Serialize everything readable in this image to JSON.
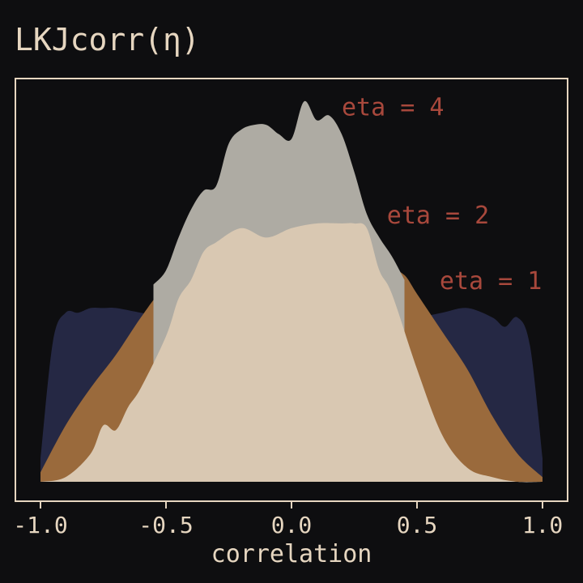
{
  "chart_data": {
    "type": "area",
    "title": "LKJcorr(η)",
    "subtitle": "",
    "xlabel": "correlation",
    "ylabel": "",
    "xlim": [
      -1.05,
      1.05
    ],
    "ylim": [
      0,
      0.85
    ],
    "xticks": [
      -1.0,
      -0.5,
      0.0,
      0.5,
      1.0
    ],
    "xtick_labels": [
      "-1.0",
      "-0.5",
      "0.0",
      "0.5",
      "1.0"
    ],
    "grid": false,
    "legend": "none",
    "series": [
      {
        "name": "eta = 1",
        "color": "#252844",
        "x": [
          -1.0,
          -0.95,
          -0.9,
          -0.85,
          -0.8,
          -0.75,
          -0.7,
          -0.6,
          -0.5,
          -0.4,
          -0.3,
          -0.2,
          -0.1,
          0.0,
          0.1,
          0.2,
          0.3,
          0.4,
          0.5,
          0.6,
          0.7,
          0.8,
          0.85,
          0.9,
          0.95,
          1.0
        ],
        "y": [
          0.05,
          0.3,
          0.36,
          0.36,
          0.37,
          0.37,
          0.37,
          0.36,
          0.35,
          0.36,
          0.36,
          0.35,
          0.36,
          0.35,
          0.34,
          0.35,
          0.36,
          0.35,
          0.35,
          0.36,
          0.37,
          0.35,
          0.33,
          0.35,
          0.29,
          0.05
        ]
      },
      {
        "name": "eta = 2",
        "color": "#9a6a3c",
        "x": [
          -1.0,
          -0.9,
          -0.8,
          -0.7,
          -0.6,
          -0.5,
          -0.45,
          -0.4,
          -0.3,
          -0.2,
          -0.1,
          0.0,
          0.1,
          0.2,
          0.3,
          0.4,
          0.45,
          0.5,
          0.6,
          0.7,
          0.8,
          0.9,
          1.0
        ],
        "y": [
          0.02,
          0.12,
          0.2,
          0.27,
          0.35,
          0.42,
          0.43,
          0.44,
          0.44,
          0.44,
          0.44,
          0.44,
          0.45,
          0.45,
          0.45,
          0.45,
          0.44,
          0.4,
          0.32,
          0.24,
          0.14,
          0.06,
          0.01
        ]
      },
      {
        "name": "eta = 4",
        "color": "#aeaba3",
        "x": [
          -0.55,
          -0.5,
          -0.45,
          -0.4,
          -0.35,
          -0.3,
          -0.25,
          -0.2,
          -0.15,
          -0.1,
          -0.05,
          0.0,
          0.05,
          0.1,
          0.15,
          0.2,
          0.25,
          0.3,
          0.35,
          0.4,
          0.45
        ],
        "y": [
          0.42,
          0.45,
          0.52,
          0.58,
          0.62,
          0.63,
          0.72,
          0.75,
          0.76,
          0.76,
          0.74,
          0.73,
          0.81,
          0.77,
          0.78,
          0.74,
          0.66,
          0.57,
          0.52,
          0.48,
          0.43
        ]
      },
      {
        "name": "",
        "color": "#d9c8b2",
        "x": [
          -1.0,
          -0.9,
          -0.8,
          -0.75,
          -0.7,
          -0.65,
          -0.6,
          -0.5,
          -0.45,
          -0.4,
          -0.35,
          -0.3,
          -0.2,
          -0.1,
          0.0,
          0.1,
          0.2,
          0.25,
          0.3,
          0.35,
          0.4,
          0.5,
          0.6,
          0.7,
          0.8,
          0.9,
          1.0
        ],
        "y": [
          0.0,
          0.01,
          0.06,
          0.12,
          0.11,
          0.16,
          0.2,
          0.31,
          0.39,
          0.43,
          0.49,
          0.51,
          0.54,
          0.52,
          0.54,
          0.55,
          0.55,
          0.55,
          0.54,
          0.45,
          0.4,
          0.24,
          0.1,
          0.03,
          0.01,
          0.0,
          0.0
        ]
      }
    ],
    "annotations": [
      {
        "text": "eta = 4",
        "x": 0.2,
        "y": 0.78
      },
      {
        "text": "eta = 2",
        "x": 0.38,
        "y": 0.55
      },
      {
        "text": "eta = 1",
        "x": 0.59,
        "y": 0.41
      }
    ]
  }
}
